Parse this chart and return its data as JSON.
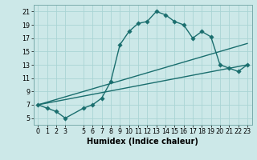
{
  "xlabel": "Humidex (Indice chaleur)",
  "background_color": "#cce8e8",
  "grid_color": "#aad4d4",
  "line_color": "#1a6e6e",
  "ylim": [
    4,
    22
  ],
  "xlim": [
    -0.5,
    23.5
  ],
  "yticks": [
    5,
    7,
    9,
    11,
    13,
    15,
    17,
    19,
    21
  ],
  "xtick_pos": [
    0,
    1,
    2,
    3,
    5,
    6,
    7,
    8,
    9,
    10,
    11,
    12,
    13,
    14,
    15,
    16,
    17,
    18,
    19,
    20,
    21,
    22,
    23
  ],
  "xtick_labels": [
    "0",
    "1",
    "2",
    "3",
    "5",
    "6",
    "7",
    "8",
    "9",
    "10",
    "11",
    "12",
    "13",
    "14",
    "15",
    "16",
    "17",
    "18",
    "19",
    "20",
    "21",
    "22",
    "23"
  ],
  "line1_x": [
    0,
    1,
    2,
    3,
    5,
    6,
    7,
    8,
    9,
    10,
    11,
    12,
    13,
    14,
    15,
    16,
    17,
    18,
    19,
    20,
    21,
    22,
    23
  ],
  "line1_y": [
    7.0,
    6.5,
    6.0,
    5.0,
    6.5,
    7.0,
    8.0,
    10.5,
    16.0,
    18.0,
    19.2,
    19.5,
    21.0,
    20.5,
    19.5,
    19.0,
    17.0,
    18.0,
    17.2,
    13.0,
    12.5,
    12.0,
    13.0
  ],
  "line2_x": [
    0,
    23
  ],
  "line2_y": [
    7.0,
    16.2
  ],
  "line3_x": [
    0,
    23
  ],
  "line3_y": [
    7.0,
    13.0
  ],
  "marker": "D",
  "markersize": 2.8,
  "linewidth": 1.0,
  "tick_fontsize": 5.8,
  "xlabel_fontsize": 7.0
}
